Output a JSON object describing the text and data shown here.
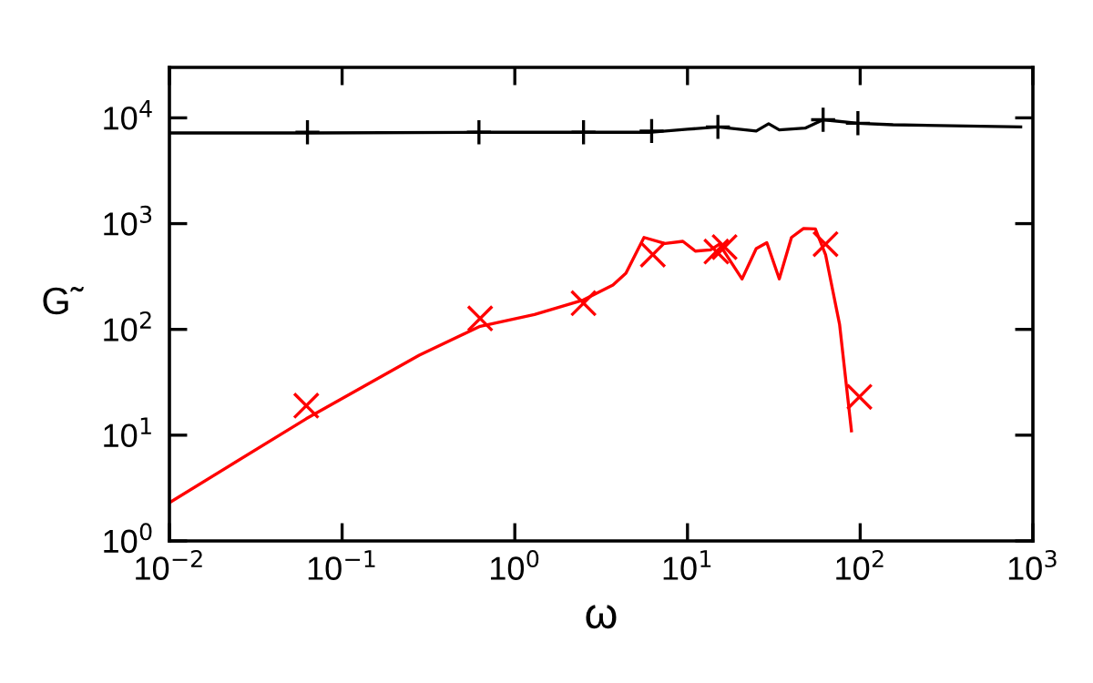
{
  "chart_data": {
    "type": "line",
    "xlabel": "ω",
    "ylabel": "G̃",
    "log": "xy",
    "grid": false,
    "legend": false,
    "xlim": [
      0.01,
      1000
    ],
    "ylim": [
      1,
      30000
    ],
    "xticks": [
      {
        "value": 0.01,
        "label": "10$^{−2}$"
      },
      {
        "value": 0.1,
        "label": "10$^{−1}$"
      },
      {
        "value": 1,
        "label": "10$^{0}$"
      },
      {
        "value": 10,
        "label": "10$^{1}$"
      },
      {
        "value": 100,
        "label": "10$^{2}$"
      },
      {
        "value": 1000,
        "label": "10$^{3}$"
      }
    ],
    "yticks": [
      {
        "value": 1,
        "label": "10$^{0}$"
      },
      {
        "value": 10,
        "label": "10$^{1}$"
      },
      {
        "value": 100,
        "label": "10$^{2}$"
      },
      {
        "value": 1000,
        "label": "10$^{3}$"
      },
      {
        "value": 10000,
        "label": "10$^{4}$"
      }
    ],
    "series": [
      {
        "color": "#000000",
        "marker": "none",
        "line_style": "solid",
        "x": [
          0.01,
          0.063,
          0.62,
          2.5,
          6,
          10,
          15,
          25,
          29.5,
          34,
          48,
          61,
          97,
          155,
          850
        ],
        "values": [
          7200,
          7200,
          7300,
          7300,
          7300,
          7800,
          8200,
          7500,
          8800,
          7700,
          8000,
          9600,
          8900,
          8600,
          8200
        ]
      },
      {
        "type": "scatter",
        "color": "#000000",
        "marker": "plus",
        "x": [
          0.063,
          0.62,
          2.5,
          6.2,
          15,
          61,
          97
        ],
        "values": [
          7300,
          7300,
          7300,
          7500,
          8200,
          9600,
          8900
        ]
      },
      {
        "color": "#ff0000",
        "marker": "none",
        "line_style": "solid",
        "x": [
          0.01,
          0.062,
          0.28,
          0.63,
          1.3,
          2.5,
          3.7,
          4.4,
          5.6,
          7.4,
          9.4,
          11.1,
          13.6,
          15.3,
          20.7,
          25,
          28.8,
          34,
          40,
          47,
          55,
          63,
          76,
          89
        ],
        "values": [
          2.3,
          14.3,
          57,
          107,
          138,
          190,
          263,
          340,
          740,
          650,
          680,
          550,
          565,
          640,
          300,
          580,
          660,
          300,
          740,
          900,
          890,
          510,
          111,
          11
        ]
      },
      {
        "type": "scatter",
        "color": "#ff0000",
        "marker": "cross",
        "x": [
          0.062,
          0.63,
          2.5,
          6.3,
          14.7,
          16.4,
          63,
          99
        ],
        "values": [
          19,
          127,
          177,
          510,
          545,
          600,
          640,
          23
        ]
      }
    ]
  }
}
